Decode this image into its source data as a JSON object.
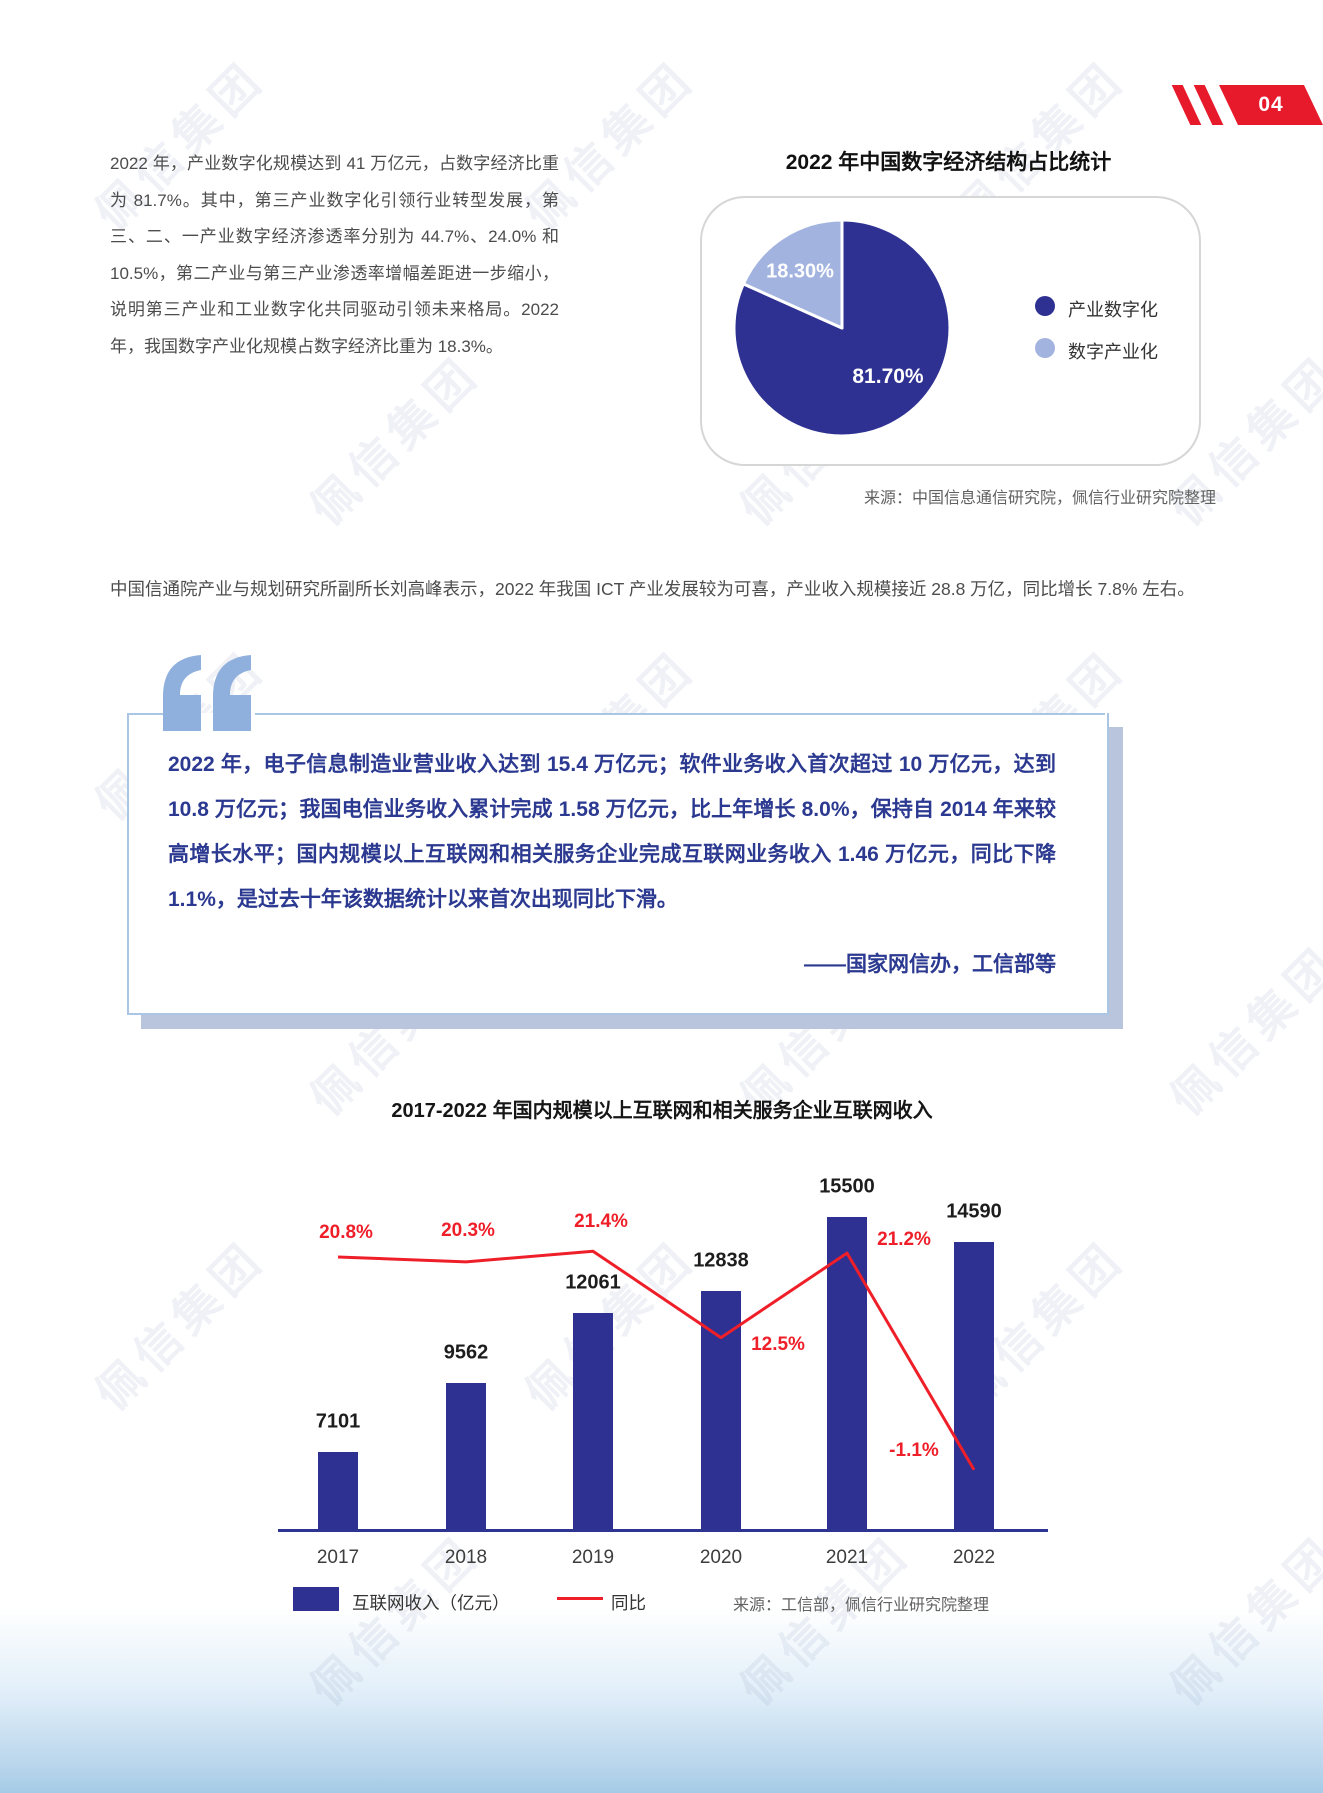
{
  "page": {
    "number": "04",
    "watermark": "佩信集团",
    "accent_red": "#E61A2B",
    "accent_blue": "#2E3192"
  },
  "sections": {
    "intro": {
      "text": "2022 年，产业数字化规模达到 41 万亿元，占数字经济比重为 81.7%。其中，第三产业数字化引领行业转型发展，第三、二、一产业数字经济渗透率分别为 44.7%、24.0% 和 10.5%，第二产业与第三产业渗透率增幅差距进一步缩小，说明第三产业和工业数字化共同驱动引领未来格局。2022 年，我国数字产业化规模占数字经济比重为 18.3%。"
    },
    "pie": {
      "title": "2022 年中国数字经济结构占比统计",
      "slices": [
        {
          "label": "产业数字化",
          "value": 81.7,
          "display": "81.70%",
          "color": "#2E3192"
        },
        {
          "label": "数字产业化",
          "value": 18.3,
          "display": "18.30%",
          "color": "#A2B3DF"
        }
      ],
      "source": "来源：中国信息通信研究院，佩信行业研究院整理"
    },
    "ict": {
      "text": "中国信通院产业与规划研究所副所长刘高峰表示，2022 年我国 ICT 产业发展较为可喜，产业收入规模接近 28.8 万亿，同比增长 7.8% 左右。"
    },
    "quote": {
      "text": "2022 年，电子信息制造业营业收入达到 15.4 万亿元；软件业务收入首次超过 10 万亿元，达到 10.8 万亿元；我国电信业务收入累计完成 1.58 万亿元，比上年增长 8.0%，保持自 2014 年来较高增长水平；国内规模以上互联网和相关服务企业完成互联网业务收入 1.46 万亿元，同比下降 1.1%，是过去十年该数据统计以来首次出现同比下滑。",
      "attribution": "——国家网信办，工信部等"
    }
  },
  "chart_data": {
    "type": "bar+line",
    "title": "2017-2022 年国内规模以上互联网和相关服务企业互联网收入",
    "categories": [
      "2017",
      "2018",
      "2019",
      "2020",
      "2021",
      "2022"
    ],
    "series": [
      {
        "name": "互联网收入（亿元）",
        "type": "bar",
        "color": "#2E3192",
        "values": [
          7101,
          9562,
          12061,
          12838,
          15500,
          14590
        ]
      },
      {
        "name": "同比",
        "type": "line",
        "color": "#EF1F29",
        "values_pct": [
          20.8,
          20.3,
          21.4,
          12.5,
          21.2,
          -1.1
        ],
        "point_labels": [
          "20.8%",
          "20.3%",
          "21.4%",
          "12.5%",
          "21.2%",
          "-1.1%"
        ]
      }
    ],
    "grid": false,
    "legend_position": "bottom",
    "source": "来源：工信部，佩信行业研究院整理"
  }
}
